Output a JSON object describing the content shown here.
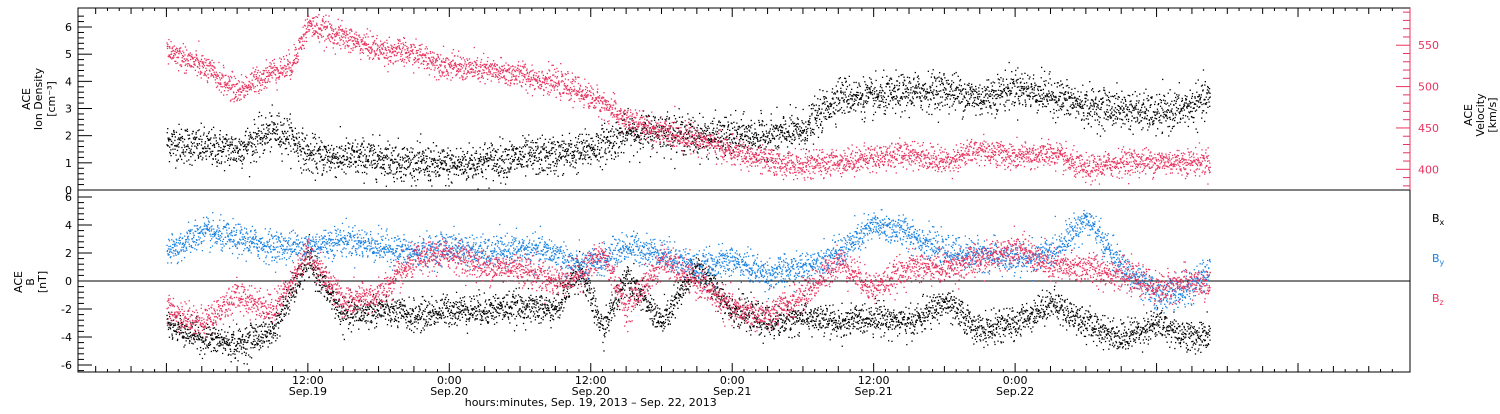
{
  "chart_data": [
    {
      "type": "scatter",
      "panel": "top",
      "ylabel_left": [
        "ACE",
        "Ion Density",
        "[cm⁻³]"
      ],
      "ylabel_right": [
        "ACE",
        "Velocity",
        "[km/s]"
      ],
      "ylim_left": [
        0,
        6.7
      ],
      "yticks_left": [
        "0",
        "1",
        "2",
        "3",
        "4",
        "5",
        "6"
      ],
      "ylim_right": [
        375,
        595
      ],
      "yticks_right": [
        "400",
        "450",
        "500",
        "550"
      ],
      "series": [
        {
          "name": "Ion Density",
          "color": "#000000",
          "axis": "left",
          "x_hours": [
            0,
            3,
            6,
            9,
            10.5,
            12,
            15,
            18,
            21,
            24,
            27,
            30,
            33,
            35,
            37,
            39,
            42,
            45,
            48,
            51,
            54,
            57,
            60,
            63,
            66,
            69,
            72,
            75,
            78,
            81,
            84,
            87,
            88.5
          ],
          "values": [
            1.8,
            1.6,
            1.5,
            2.2,
            2.0,
            1.3,
            1.2,
            1.2,
            1.0,
            0.9,
            1.1,
            1.2,
            1.3,
            1.4,
            1.7,
            2.1,
            2.2,
            2.0,
            2.0,
            2.0,
            2.2,
            3.5,
            3.4,
            3.6,
            3.7,
            3.4,
            3.8,
            3.5,
            3.1,
            3.0,
            2.8,
            3.1,
            3.4
          ]
        },
        {
          "name": "Velocity",
          "color": "#e8345f",
          "axis": "right",
          "x_hours": [
            0,
            3,
            6,
            9,
            10.5,
            12,
            15,
            18,
            21,
            24,
            27,
            30,
            33,
            35,
            37,
            39,
            42,
            45,
            48,
            51,
            54,
            57,
            60,
            63,
            66,
            69,
            72,
            75,
            78,
            81,
            84,
            87,
            88.5
          ],
          "values": [
            545,
            525,
            495,
            520,
            525,
            575,
            560,
            545,
            540,
            525,
            520,
            515,
            505,
            495,
            480,
            460,
            445,
            438,
            422,
            410,
            405,
            410,
            415,
            420,
            410,
            425,
            415,
            420,
            400,
            410,
            410,
            410,
            410
          ]
        }
      ],
      "grid": false
    },
    {
      "type": "scatter",
      "panel": "bottom",
      "ylabel": [
        "ACE",
        "B",
        "[nT]"
      ],
      "ylim": [
        -6.5,
        6.5
      ],
      "yticks": [
        "-6",
        "-4",
        "-2",
        "0",
        "2",
        "4",
        "6"
      ],
      "zero_line": true,
      "legend": {
        "placement": "right",
        "entries": [
          {
            "base": "B",
            "sub": "x",
            "color": "#000000"
          },
          {
            "base": "B",
            "sub": "y",
            "color": "#1a82e0"
          },
          {
            "base": "B",
            "sub": "z",
            "color": "#e8345f"
          }
        ]
      },
      "series": [
        {
          "name": "Bx",
          "color": "#000000",
          "x_hours": [
            0,
            3,
            6,
            9,
            12,
            15,
            18,
            21,
            24,
            27,
            30,
            33,
            35,
            37,
            39,
            42,
            45,
            48,
            51,
            54,
            57,
            60,
            63,
            66,
            69,
            72,
            75,
            78,
            81,
            84,
            87,
            88.5
          ],
          "values": [
            -3.0,
            -4.0,
            -4.5,
            -3.5,
            1.5,
            -2.5,
            -2.0,
            -2.5,
            -2.0,
            -2.0,
            -1.8,
            -2.0,
            1.0,
            -3.5,
            0.5,
            -3.0,
            1.0,
            -2.0,
            -3.0,
            -2.5,
            -3.0,
            -2.5,
            -3.0,
            -1.5,
            -3.5,
            -3.0,
            -1.5,
            -3.0,
            -4.0,
            -3.0,
            -4.0,
            -3.8
          ]
        },
        {
          "name": "By",
          "color": "#1a82e0",
          "x_hours": [
            0,
            3,
            6,
            9,
            12,
            15,
            18,
            21,
            24,
            27,
            30,
            33,
            35,
            37,
            39,
            42,
            45,
            48,
            51,
            54,
            57,
            60,
            63,
            66,
            69,
            72,
            75,
            78,
            81,
            84,
            87,
            88.5
          ],
          "values": [
            2.0,
            3.5,
            3.0,
            2.5,
            2.5,
            3.0,
            2.5,
            2.0,
            2.5,
            2.0,
            2.3,
            2.0,
            1.0,
            1.5,
            2.5,
            2.0,
            1.0,
            1.5,
            0.5,
            1.0,
            2.0,
            4.0,
            3.5,
            2.0,
            2.0,
            1.5,
            2.0,
            4.5,
            1.0,
            -1.0,
            -0.5,
            1.0
          ]
        },
        {
          "name": "Bz",
          "color": "#e8345f",
          "x_hours": [
            0,
            3,
            6,
            9,
            12,
            15,
            18,
            21,
            24,
            27,
            30,
            33,
            35,
            37,
            39,
            42,
            45,
            48,
            51,
            54,
            57,
            60,
            63,
            66,
            69,
            72,
            75,
            78,
            81,
            84,
            87,
            88.5
          ],
          "values": [
            -2.0,
            -3.0,
            -1.0,
            -2.0,
            2.0,
            -1.5,
            -1.0,
            1.5,
            2.0,
            1.0,
            1.0,
            0.0,
            0.5,
            2.0,
            -2.0,
            1.5,
            0.0,
            -2.0,
            -2.5,
            -1.0,
            1.5,
            -0.5,
            1.0,
            1.0,
            1.5,
            2.5,
            1.0,
            1.0,
            0.5,
            -0.5,
            0.0,
            -0.5
          ]
        }
      ],
      "grid": false
    }
  ],
  "x_axis": {
    "ticks": [
      {
        "hour": 12,
        "time": "12:00",
        "date": "Sep.19"
      },
      {
        "hour": 24,
        "time": "0:00",
        "date": "Sep.20"
      },
      {
        "hour": 36,
        "time": "12:00",
        "date": "Sep.20"
      },
      {
        "hour": 48,
        "time": "0:00",
        "date": "Sep.21"
      },
      {
        "hour": 60,
        "time": "12:00",
        "date": "Sep.21"
      },
      {
        "hour": 72,
        "time": "0:00",
        "date": "Sep.22"
      }
    ],
    "xlabel": "hours:minutes, Sep. 19, 2013 – Sep. 22, 2013"
  }
}
